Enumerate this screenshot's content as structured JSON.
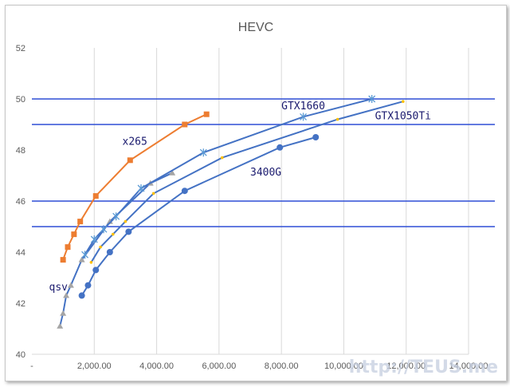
{
  "chart_data": {
    "type": "line",
    "title": "HEVC",
    "xlabel": "",
    "ylabel": "",
    "xlim": [
      0,
      14000
    ],
    "ylim": [
      40,
      52
    ],
    "x_ticks": [
      {
        "value": 0,
        "label": "-"
      },
      {
        "value": 2000,
        "label": "2,000.00"
      },
      {
        "value": 4000,
        "label": "4,000.00"
      },
      {
        "value": 6000,
        "label": "6,000.00"
      },
      {
        "value": 8000,
        "label": "8,000.00"
      },
      {
        "value": 10000,
        "label": "10,000.00"
      },
      {
        "value": 12000,
        "label": "12,000.00"
      },
      {
        "value": 14000,
        "label": "14,000.00"
      }
    ],
    "y_ticks": [
      {
        "value": 40,
        "label": "40"
      },
      {
        "value": 42,
        "label": "42"
      },
      {
        "value": 44,
        "label": "44"
      },
      {
        "value": 46,
        "label": "46"
      },
      {
        "value": 48,
        "label": "48"
      },
      {
        "value": 50,
        "label": "50"
      },
      {
        "value": 52,
        "label": "52"
      }
    ],
    "grid": {
      "vertical": true,
      "horizontal": false
    },
    "horizontal_lines": [
      {
        "y": 50,
        "color": "#2f4fd6"
      },
      {
        "y": 49,
        "color": "#2f4fd6"
      },
      {
        "y": 46,
        "color": "#2f4fd6"
      },
      {
        "y": 45,
        "color": "#2f4fd6"
      }
    ],
    "series": [
      {
        "label": "x265",
        "color": "#ed7d31",
        "marker": "square",
        "x": [
          1000,
          1150,
          1350,
          1550,
          2050,
          3150,
          4900,
          5600
        ],
        "y": [
          43.7,
          44.2,
          44.7,
          45.2,
          46.2,
          47.6,
          49.0,
          49.4
        ]
      },
      {
        "label": "qsv",
        "color": "#4472c4",
        "marker": "triangle",
        "marker_color": "#a5a5a5",
        "x": [
          900,
          1000,
          1100,
          1250,
          1600,
          2500,
          3800,
          4500
        ],
        "y": [
          41.1,
          41.6,
          42.3,
          42.7,
          43.7,
          45.2,
          46.7,
          47.1
        ]
      },
      {
        "label": "GTX1660",
        "color": "#4472c4",
        "marker": "star",
        "marker_color": "#5b9bd5",
        "x": [
          1700,
          2000,
          2300,
          2700,
          3500,
          5500,
          8700,
          10900
        ],
        "y": [
          43.9,
          44.5,
          44.9,
          45.4,
          46.5,
          47.9,
          49.3,
          50.0
        ]
      },
      {
        "label": "GTX1050Ti",
        "color": "#4472c4",
        "marker": "dot",
        "marker_color": "#ffc000",
        "x": [
          1900,
          2200,
          2600,
          3000,
          3900,
          6100,
          9800,
          11900
        ],
        "y": [
          43.6,
          44.2,
          44.7,
          45.2,
          46.3,
          47.7,
          49.2,
          49.9
        ]
      },
      {
        "label": "3400G",
        "color": "#4472c4",
        "marker": "circle",
        "marker_color": "#4472c4",
        "x": [
          1600,
          1800,
          2050,
          2500,
          3100,
          4900,
          7950,
          9100
        ],
        "y": [
          42.3,
          42.7,
          43.3,
          44.0,
          44.8,
          46.4,
          48.1,
          48.5
        ]
      }
    ],
    "annotations": [
      {
        "text": "x265",
        "x": 2900,
        "y": 48.2
      },
      {
        "text": "qsv",
        "x": 550,
        "y": 42.5
      },
      {
        "text": "GTX1660",
        "x": 8000,
        "y": 49.6
      },
      {
        "text": "GTX1050Ti",
        "x": 11000,
        "y": 49.2
      },
      {
        "text": "3400G",
        "x": 7000,
        "y": 47.0
      }
    ]
  },
  "watermark": {
    "text": "http://TEUS.me"
  }
}
